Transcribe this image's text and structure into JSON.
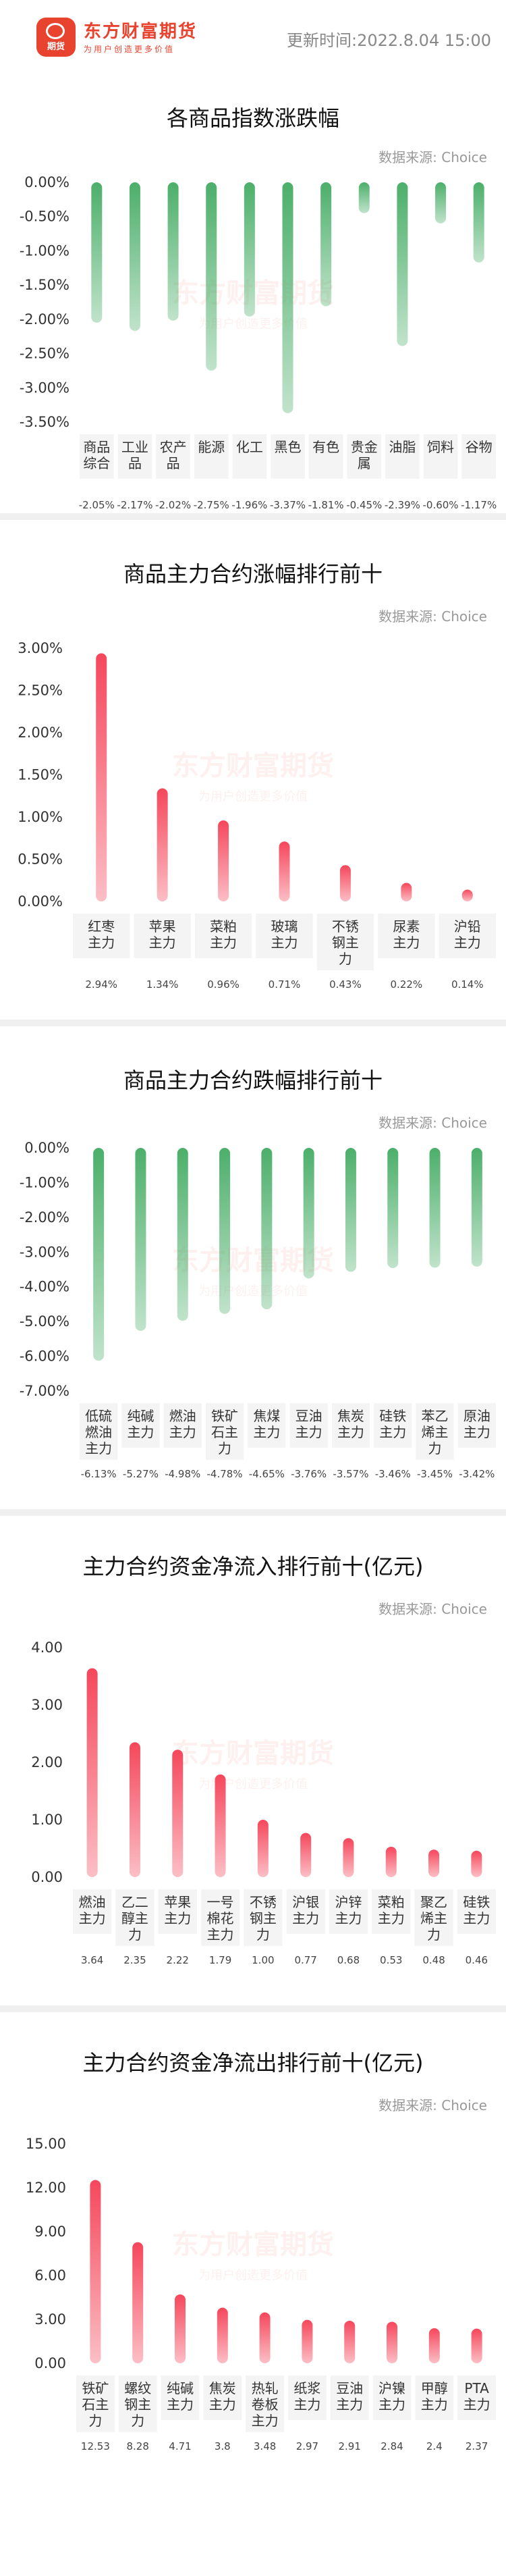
{
  "header": {
    "brand": "东方财富期货",
    "logo_text": "期货",
    "slogan": "为用户创造更多价值",
    "update_label": "更新时间:",
    "update_time": "2022.8.04 15:00"
  },
  "source_label": "数据来源: Choice",
  "watermark": {
    "brand": "东方财富期货",
    "slogan": "为用户创造更多价值"
  },
  "colors": {
    "up": "#f5475b",
    "down": "#4caf6a",
    "brand": "#e8432f"
  },
  "chart_data": [
    {
      "type": "bar",
      "title": "各商品指数涨跌幅",
      "direction": "down",
      "ylim": [
        -3.5,
        0
      ],
      "tick_values": [
        0,
        -0.5,
        -1.0,
        -1.5,
        -2.0,
        -2.5,
        -3.0,
        -3.5
      ],
      "tick_labels": [
        "0.00%",
        "-0.50%",
        "-1.00%",
        "-1.50%",
        "-2.00%",
        "-2.50%",
        "-3.00%",
        "-3.50%"
      ],
      "categories": [
        "商品\n综合",
        "工业\n品",
        "农产\n品",
        "能源",
        "化工",
        "黑色",
        "有色",
        "贵金\n属",
        "油脂",
        "饲料",
        "谷物"
      ],
      "values": [
        -2.05,
        -2.17,
        -2.02,
        -2.75,
        -1.96,
        -3.37,
        -1.81,
        -0.45,
        -2.39,
        -0.6,
        -1.17
      ],
      "value_labels": [
        "-2.05%",
        "-2.17%",
        "-2.02%",
        "-2.75%",
        "-1.96%",
        "-3.37%",
        "-1.81%",
        "-0.45%",
        "-2.39%",
        "-0.60%",
        "-1.17%"
      ],
      "grid": false
    },
    {
      "type": "bar",
      "title": "商品主力合约涨幅排行前十",
      "direction": "up",
      "ylim": [
        0,
        3
      ],
      "tick_values": [
        0,
        0.5,
        1.0,
        1.5,
        2.0,
        2.5,
        3.0
      ],
      "tick_labels": [
        "0.00%",
        "0.50%",
        "1.00%",
        "1.50%",
        "2.00%",
        "2.50%",
        "3.00%"
      ],
      "categories": [
        "红枣\n主力",
        "苹果\n主力",
        "菜粕\n主力",
        "玻璃\n主力",
        "不锈\n钢主\n力",
        "尿素\n主力",
        "沪铅\n主力"
      ],
      "values": [
        2.94,
        1.34,
        0.96,
        0.71,
        0.43,
        0.22,
        0.14
      ],
      "value_labels": [
        "2.94%",
        "1.34%",
        "0.96%",
        "0.71%",
        "0.43%",
        "0.22%",
        "0.14%"
      ],
      "grid": false
    },
    {
      "type": "bar",
      "title": "商品主力合约跌幅排行前十",
      "direction": "down",
      "ylim": [
        -7,
        0
      ],
      "tick_values": [
        0,
        -1,
        -2,
        -3,
        -4,
        -5,
        -6,
        -7
      ],
      "tick_labels": [
        "0.00%",
        "-1.00%",
        "-2.00%",
        "-3.00%",
        "-4.00%",
        "-5.00%",
        "-6.00%",
        "-7.00%"
      ],
      "categories": [
        "低硫\n燃油\n主力",
        "纯碱\n主力",
        "燃油\n主力",
        "铁矿\n石主\n力",
        "焦煤\n主力",
        "豆油\n主力",
        "焦炭\n主力",
        "硅铁\n主力",
        "苯乙\n烯主\n力",
        "原油\n主力"
      ],
      "values": [
        -6.13,
        -5.27,
        -4.98,
        -4.78,
        -4.65,
        -3.76,
        -3.57,
        -3.46,
        -3.45,
        -3.42
      ],
      "value_labels": [
        "-6.13%",
        "-5.27%",
        "-4.98%",
        "-4.78%",
        "-4.65%",
        "-3.76%",
        "-3.57%",
        "-3.46%",
        "-3.45%",
        "-3.42%"
      ],
      "grid": false
    },
    {
      "type": "bar",
      "title": "主力合约资金净流入排行前十(亿元)",
      "direction": "up",
      "ylim": [
        0,
        4
      ],
      "tick_values": [
        0,
        1,
        2,
        3,
        4
      ],
      "tick_labels": [
        "0.00",
        "1.00",
        "2.00",
        "3.00",
        "4.00"
      ],
      "categories": [
        "燃油\n主力",
        "乙二\n醇主\n力",
        "苹果\n主力",
        "一号\n棉花\n主力",
        "不锈\n钢主\n力",
        "沪银\n主力",
        "沪锌\n主力",
        "菜粕\n主力",
        "聚乙\n烯主\n力",
        "硅铁\n主力"
      ],
      "values": [
        3.64,
        2.35,
        2.22,
        1.79,
        1.0,
        0.77,
        0.68,
        0.53,
        0.48,
        0.46
      ],
      "value_labels": [
        "3.64",
        "2.35",
        "2.22",
        "1.79",
        "1.00",
        "0.77",
        "0.68",
        "0.53",
        "0.48",
        "0.46"
      ],
      "grid": false
    },
    {
      "type": "bar",
      "title": "主力合约资金净流出排行前十(亿元)",
      "direction": "up",
      "ylim": [
        0,
        15
      ],
      "tick_values": [
        0,
        3,
        6,
        9,
        12,
        15
      ],
      "tick_labels": [
        "0.00",
        "3.00",
        "6.00",
        "9.00",
        "12.00",
        "15.00"
      ],
      "categories": [
        "铁矿\n石主\n力",
        "螺纹\n钢主\n力",
        "纯碱\n主力",
        "焦炭\n主力",
        "热轧\n卷板\n主力",
        "纸浆\n主力",
        "豆油\n主力",
        "沪镍\n主力",
        "甲醇\n主力",
        "PTA\n主力"
      ],
      "values": [
        12.53,
        8.28,
        4.71,
        3.8,
        3.48,
        2.97,
        2.91,
        2.84,
        2.4,
        2.37
      ],
      "value_labels": [
        "12.53",
        "8.28",
        "4.71",
        "3.8",
        "3.48",
        "2.97",
        "2.91",
        "2.84",
        "2.4",
        "2.37"
      ],
      "grid": false
    }
  ]
}
